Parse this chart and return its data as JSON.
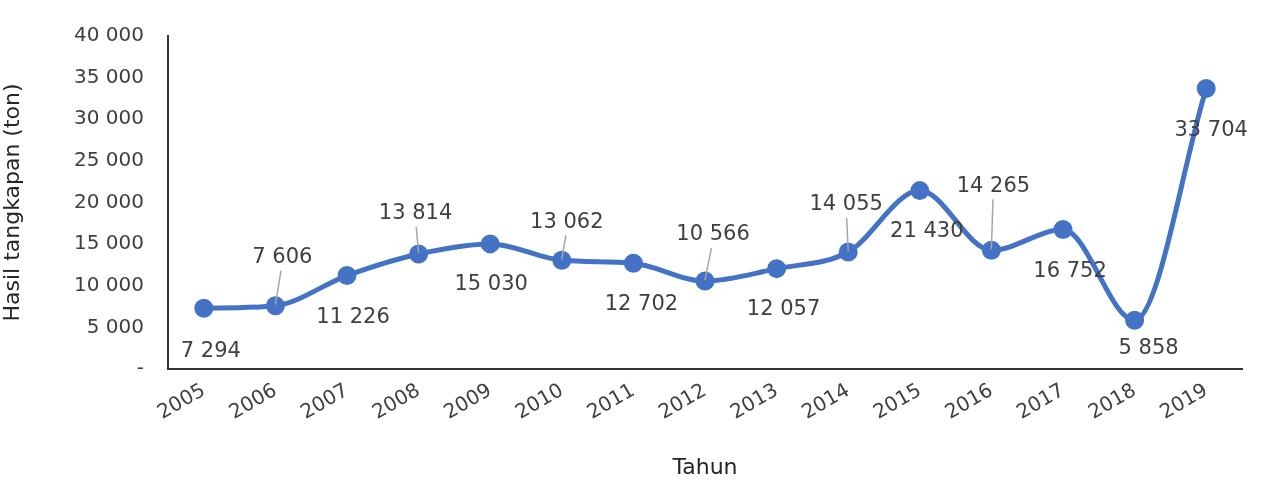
{
  "chart_data": {
    "type": "line",
    "xlabel": "Tahun",
    "ylabel": "Hasil tangkapan (ton)",
    "categories": [
      "2005",
      "2006",
      "2007",
      "2008",
      "2009",
      "2010",
      "2011",
      "2012",
      "2013",
      "2014",
      "2015",
      "2016",
      "2017",
      "2018",
      "2019"
    ],
    "values": [
      7294,
      7606,
      11226,
      13814,
      15030,
      13062,
      12702,
      10566,
      12057,
      14055,
      21430,
      14265,
      16752,
      5858,
      33704
    ],
    "value_labels": [
      "7 294",
      "7 606",
      "11 226",
      "13 814",
      "15 030",
      "13 062",
      "12 702",
      "10 566",
      "12 057",
      "14 055",
      "21 430",
      "14 265",
      "16 752",
      "5 858",
      "33 704"
    ],
    "color": "#4472c4",
    "ylim": [
      0,
      40000
    ],
    "yticks": [
      {
        "value": 0,
        "label": "-"
      },
      {
        "value": 5000,
        "label": "5 000"
      },
      {
        "value": 10000,
        "label": "10 000"
      },
      {
        "value": 15000,
        "label": "15 000"
      },
      {
        "value": 20000,
        "label": "20 000"
      },
      {
        "value": 25000,
        "label": "25 000"
      },
      {
        "value": 30000,
        "label": "30 000"
      },
      {
        "value": 35000,
        "label": "35 000"
      },
      {
        "value": 40000,
        "label": "40 000"
      }
    ],
    "grid": false,
    "legend": false,
    "marker": "circle",
    "line_style": "solid"
  }
}
